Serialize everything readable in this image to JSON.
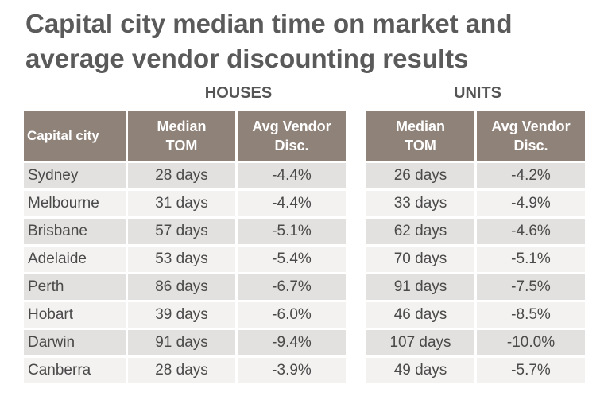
{
  "title_line1": "Capital city median time on market and",
  "title_line2": "average vendor discounting results",
  "groups": {
    "houses": "HOUSES",
    "units": "UNITS"
  },
  "columns": {
    "city": "Capital city",
    "median_tom_l1": "Median",
    "median_tom_l2": "TOM",
    "vendor_disc_l1": "Avg Vendor",
    "vendor_disc_l2": "Disc."
  },
  "rows": [
    {
      "city": "Sydney",
      "houses_tom": "28 days",
      "houses_disc": "-4.4%",
      "units_tom": "26 days",
      "units_disc": "-4.2%"
    },
    {
      "city": "Melbourne",
      "houses_tom": "31 days",
      "houses_disc": "-4.4%",
      "units_tom": "33 days",
      "units_disc": "-4.9%"
    },
    {
      "city": "Brisbane",
      "houses_tom": "57 days",
      "houses_disc": "-5.1%",
      "units_tom": "62 days",
      "units_disc": "-4.6%"
    },
    {
      "city": "Adelaide",
      "houses_tom": "53 days",
      "houses_disc": "-5.4%",
      "units_tom": "70 days",
      "units_disc": "-5.1%"
    },
    {
      "city": "Perth",
      "houses_tom": "86 days",
      "houses_disc": "-6.7%",
      "units_tom": "91 days",
      "units_disc": "-7.5%"
    },
    {
      "city": "Hobart",
      "houses_tom": "39 days",
      "houses_disc": "-6.0%",
      "units_tom": "46 days",
      "units_disc": "-8.5%"
    },
    {
      "city": "Darwin",
      "houses_tom": "91 days",
      "houses_disc": "-9.4%",
      "units_tom": "107 days",
      "units_disc": "-10.0%"
    },
    {
      "city": "Canberra",
      "houses_tom": "28 days",
      "houses_disc": "-3.9%",
      "units_tom": "49 days",
      "units_disc": "-5.7%"
    }
  ],
  "colors": {
    "header_bg": "#8f8279",
    "row_dark": "#e3e1df",
    "row_light": "#f3f2f1",
    "title_text": "#5a5a5a"
  }
}
